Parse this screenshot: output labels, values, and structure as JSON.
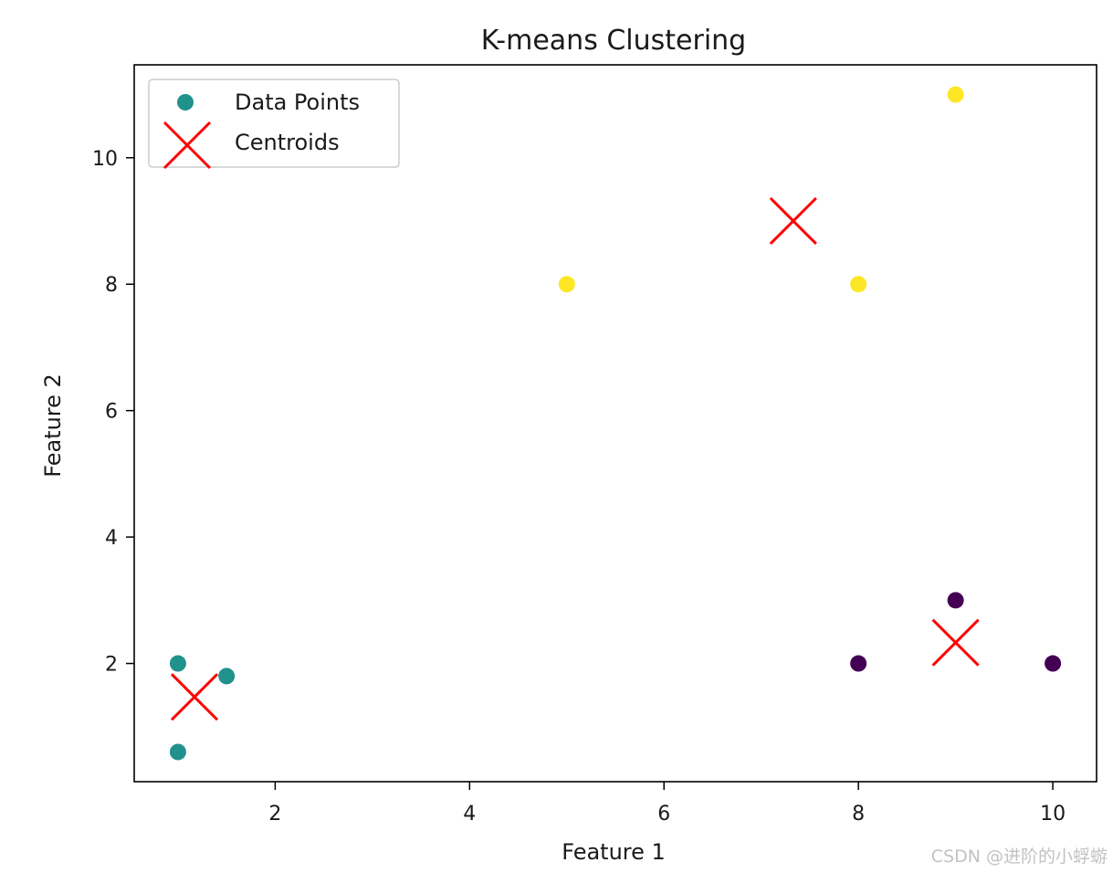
{
  "chart_data": {
    "type": "scatter",
    "title": "K-means Clustering",
    "xlabel": "Feature 1",
    "ylabel": "Feature 2",
    "xlim": [
      0.55,
      10.45
    ],
    "ylim": [
      0.13,
      11.47
    ],
    "xticks": [
      2,
      4,
      6,
      8,
      10
    ],
    "yticks": [
      2,
      4,
      6,
      8,
      10
    ],
    "grid": false,
    "legend_position": "top-left",
    "series": [
      {
        "name": "Data Points",
        "marker": "circle",
        "points": [
          {
            "x": 1,
            "y": 2,
            "cluster": 1
          },
          {
            "x": 1.5,
            "y": 1.8,
            "cluster": 1
          },
          {
            "x": 1,
            "y": 0.6,
            "cluster": 1
          },
          {
            "x": 5,
            "y": 8,
            "cluster": 2
          },
          {
            "x": 8,
            "y": 8,
            "cluster": 2
          },
          {
            "x": 9,
            "y": 11,
            "cluster": 2
          },
          {
            "x": 8,
            "y": 2,
            "cluster": 0
          },
          {
            "x": 9,
            "y": 3,
            "cluster": 0
          },
          {
            "x": 10,
            "y": 2,
            "cluster": 0
          }
        ]
      },
      {
        "name": "Centroids",
        "marker": "x",
        "color": "#ff0000",
        "points": [
          {
            "x": 1.17,
            "y": 1.47
          },
          {
            "x": 7.33,
            "y": 9.0
          },
          {
            "x": 9.0,
            "y": 2.33
          }
        ]
      }
    ],
    "cluster_colors": [
      "#440154",
      "#21918c",
      "#fde725"
    ],
    "legend_marker_color": "#21918c"
  },
  "watermark": "CSDN @进阶的小蜉蝣"
}
